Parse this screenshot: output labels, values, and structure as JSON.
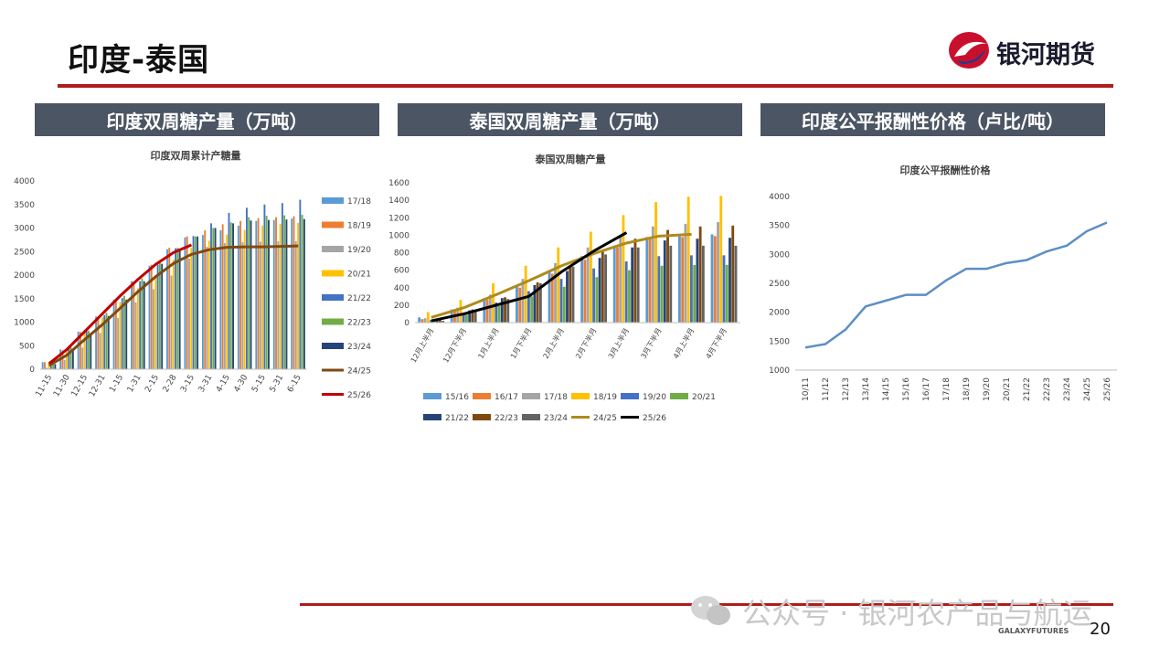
{
  "slide": {
    "title": "印度-泰国",
    "logo_text": "银河期货",
    "page_number": "20",
    "footer_brand": "GALAXYFUTURES",
    "watermark": "公众号 · 银河农产品与航运"
  },
  "panels": [
    {
      "header": "印度双周糖产量（万吨）"
    },
    {
      "header": "泰国双周糖产量（万吨）"
    },
    {
      "header": "印度公平报酬性价格（卢比/吨）"
    }
  ],
  "colors": {
    "accent_red": "#b01c1c",
    "header_bg": "#4b5563"
  },
  "chart_data": [
    {
      "type": "bar",
      "title": "印度双周累计产糖量",
      "ylim": [
        0,
        4000
      ],
      "yticks": [
        "0",
        "500",
        "1000",
        "1500",
        "2000",
        "2500",
        "3000",
        "3500",
        "4000"
      ],
      "categories": [
        "11-15",
        "11-30",
        "12-15",
        "12-31",
        "1-15",
        "1-31",
        "2-15",
        "2-28",
        "3-15",
        "3-31",
        "4-15",
        "4-30",
        "5-15",
        "5-31",
        "6-15"
      ],
      "legend_position": "right",
      "series": [
        {
          "name": "17/18",
          "color": "#5b9bd5",
          "type": "bar",
          "values": [
            150,
            420,
            800,
            1120,
            1480,
            1870,
            2200,
            2550,
            2800,
            2850,
            2950,
            3050,
            3150,
            3170,
            3200
          ]
        },
        {
          "name": "18/19",
          "color": "#ed7d31",
          "type": "bar",
          "values": [
            150,
            400,
            790,
            1110,
            1470,
            1870,
            2220,
            2580,
            2820,
            2950,
            3080,
            3150,
            3210,
            3230,
            3250
          ]
        },
        {
          "name": "19/20",
          "color": "#a5a5a5",
          "type": "bar",
          "values": [
            30,
            200,
            460,
            770,
            1090,
            1420,
            1700,
            1990,
            2350,
            2600,
            2680,
            2700,
            2710,
            2720,
            2720
          ]
        },
        {
          "name": "20/21",
          "color": "#ffc000",
          "type": "bar",
          "values": [
            140,
            430,
            780,
            1100,
            1420,
            1720,
            2000,
            2330,
            2580,
            2730,
            2860,
            2960,
            3050,
            3090,
            3110
          ]
        },
        {
          "name": "21/22",
          "color": "#4472c4",
          "type": "bar",
          "values": [
            140,
            470,
            810,
            1150,
            1510,
            1870,
            2220,
            2570,
            2830,
            3100,
            3320,
            3430,
            3500,
            3530,
            3600
          ]
        },
        {
          "name": "22/23",
          "color": "#70ad47",
          "type": "bar",
          "values": [
            120,
            470,
            820,
            1200,
            1560,
            1930,
            2260,
            2580,
            2820,
            3000,
            3120,
            3230,
            3260,
            3270,
            3280
          ]
        },
        {
          "name": "23/24",
          "color": "#264478",
          "type": "bar",
          "values": [
            110,
            430,
            750,
            1130,
            1480,
            1870,
            2240,
            2560,
            2820,
            3000,
            3100,
            3160,
            3170,
            3180,
            3190
          ]
        },
        {
          "name": "24/25",
          "color": "#7f4a10",
          "type": "line",
          "values": [
            80,
            300,
            630,
            950,
            1300,
            1650,
            1970,
            2250,
            2440,
            2540,
            2590,
            2600,
            2600,
            2610,
            2620
          ]
        },
        {
          "name": "25/26",
          "color": "#c00000",
          "type": "line",
          "values": [
            120,
            420,
            800,
            1180,
            1560,
            1910,
            2230,
            2480,
            2640,
            null,
            null,
            null,
            null,
            null,
            null
          ]
        }
      ]
    },
    {
      "type": "bar",
      "title": "泰国双周糖产量",
      "ylim": [
        0,
        1600
      ],
      "yticks": [
        "0",
        "200",
        "400",
        "600",
        "800",
        "1000",
        "1200",
        "1400",
        "1600"
      ],
      "categories": [
        "12月上半月",
        "12月下半月",
        "1月上半月",
        "1月下半月",
        "2月上半月",
        "2月下半月",
        "3月上半月",
        "3月下半月",
        "4月上半月",
        "4月下半月"
      ],
      "legend_position": "bottom",
      "series": [
        {
          "name": "15/16",
          "color": "#5b9bd5",
          "type": "bar",
          "values": [
            60,
            150,
            280,
            430,
            600,
            760,
            880,
            980,
            1000,
            1010
          ]
        },
        {
          "name": "16/17",
          "color": "#ed7d31",
          "type": "bar",
          "values": [
            40,
            140,
            260,
            400,
            560,
            720,
            860,
            960,
            980,
            990
          ]
        },
        {
          "name": "17/18",
          "color": "#a5a5a5",
          "type": "bar",
          "values": [
            50,
            170,
            320,
            500,
            680,
            860,
            1000,
            1100,
            1130,
            1150
          ]
        },
        {
          "name": "18/19",
          "color": "#ffc000",
          "type": "bar",
          "values": [
            120,
            260,
            450,
            650,
            860,
            1040,
            1230,
            1380,
            1440,
            1450
          ]
        },
        {
          "name": "19/20",
          "color": "#4472c4",
          "type": "bar",
          "values": [
            30,
            110,
            230,
            360,
            500,
            620,
            700,
            760,
            770,
            770
          ]
        },
        {
          "name": "20/21",
          "color": "#70ad47",
          "type": "bar",
          "values": [
            20,
            90,
            190,
            300,
            410,
            520,
            600,
            650,
            660,
            660
          ]
        },
        {
          "name": "21/22",
          "color": "#264478",
          "type": "bar",
          "values": [
            40,
            140,
            280,
            430,
            590,
            740,
            860,
            940,
            960,
            970
          ]
        },
        {
          "name": "22/23",
          "color": "#7f4a10",
          "type": "bar",
          "values": [
            40,
            150,
            290,
            460,
            640,
            820,
            960,
            1060,
            1100,
            1110
          ]
        },
        {
          "name": "23/24",
          "color": "#636363",
          "type": "bar",
          "values": [
            20,
            120,
            270,
            450,
            640,
            780,
            860,
            880,
            880,
            880
          ]
        },
        {
          "name": "24/25",
          "color": "#b08a1c",
          "type": "line",
          "values": [
            60,
            170,
            320,
            480,
            650,
            790,
            910,
            990,
            1010,
            null
          ]
        },
        {
          "name": "25/26",
          "color": "#000000",
          "type": "line",
          "values": [
            20,
            100,
            200,
            300,
            580,
            820,
            1030,
            null,
            null,
            null
          ]
        }
      ]
    },
    {
      "type": "line",
      "title": "印度公平报酬性价格",
      "ylim": [
        1000,
        4000
      ],
      "yticks": [
        "1000",
        "1500",
        "2000",
        "2500",
        "3000",
        "3500",
        "4000"
      ],
      "x": [
        "10/11",
        "11/12",
        "12/13",
        "13/14",
        "14/15",
        "15/16",
        "16/17",
        "17/18",
        "18/19",
        "19/20",
        "20/21",
        "21/22",
        "22/23",
        "23/24",
        "24/25",
        "25/26"
      ],
      "series": [
        {
          "name": "",
          "color": "#5b8fc5",
          "values": [
            1391,
            1450,
            1700,
            2100,
            2200,
            2300,
            2300,
            2550,
            2750,
            2750,
            2850,
            2900,
            3050,
            3150,
            3400,
            3550
          ]
        }
      ]
    }
  ]
}
